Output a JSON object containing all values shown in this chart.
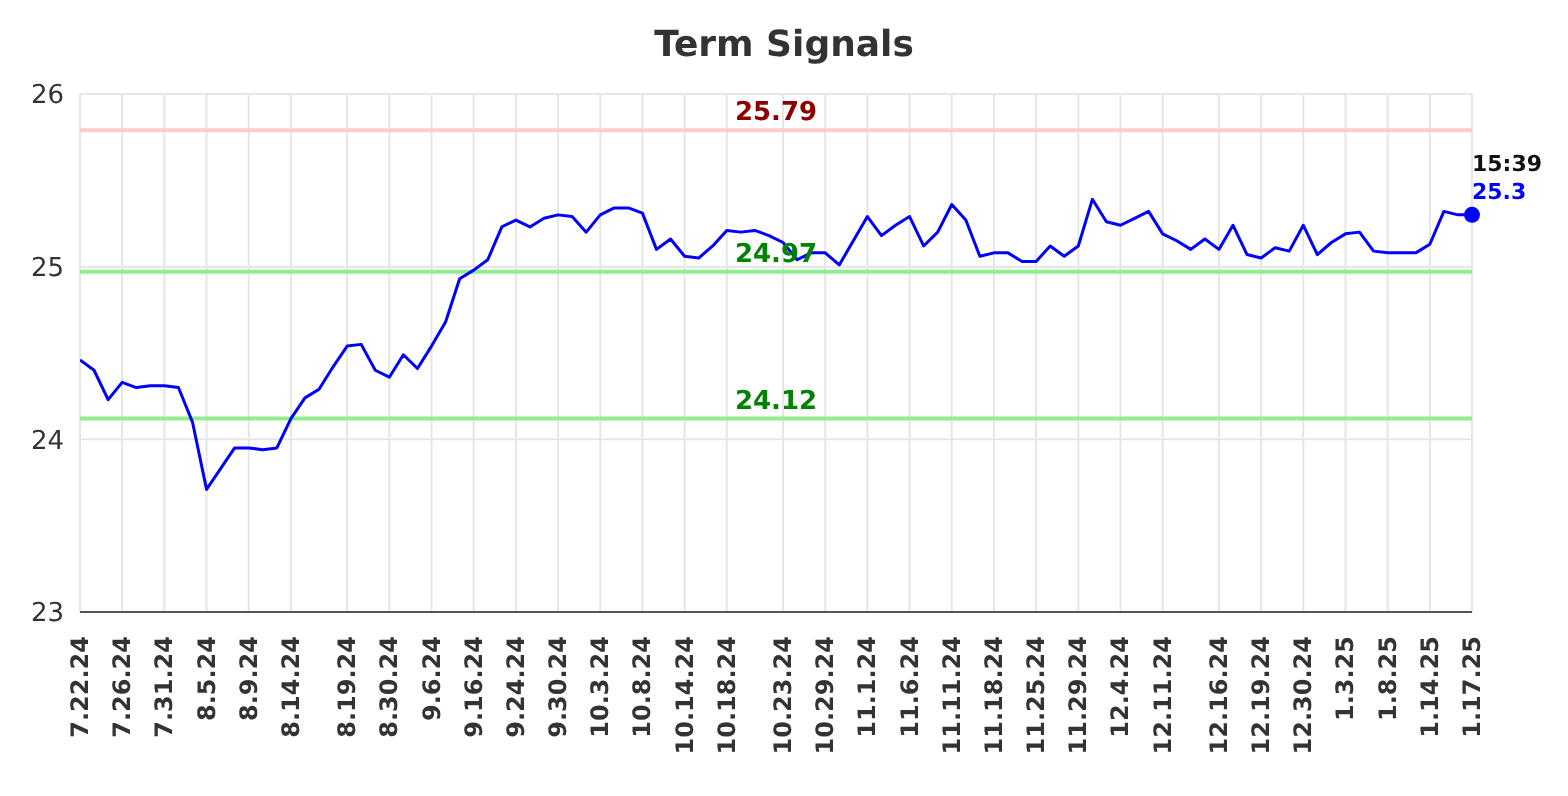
{
  "chart_data": {
    "type": "line",
    "title": "Term Signals",
    "categories": [
      "7.22.24",
      null,
      null,
      "7.26.24",
      null,
      null,
      "7.31.24",
      null,
      null,
      "8.5.24",
      null,
      null,
      "8.9.24",
      null,
      null,
      "8.14.24",
      null,
      null,
      null,
      "8.19.24",
      null,
      null,
      "8.30.24",
      null,
      null,
      "9.6.24",
      null,
      null,
      "9.16.24",
      null,
      null,
      "9.24.24",
      null,
      null,
      "9.30.24",
      null,
      null,
      "10.3.24",
      null,
      null,
      "10.8.24",
      null,
      null,
      "10.14.24",
      null,
      null,
      "10.18.24",
      null,
      null,
      null,
      "10.23.24",
      null,
      null,
      "10.29.24",
      null,
      null,
      "11.1.24",
      null,
      null,
      "11.6.24",
      null,
      null,
      "11.11.24",
      null,
      null,
      "11.18.24",
      null,
      null,
      "11.25.24",
      null,
      null,
      "11.29.24",
      null,
      null,
      "12.4.24",
      null,
      null,
      "12.11.24",
      null,
      null,
      null,
      "12.16.24",
      null,
      null,
      "12.19.24",
      null,
      null,
      "12.30.24",
      null,
      null,
      "1.3.25",
      null,
      null,
      "1.8.25",
      null,
      null,
      "1.14.25",
      null,
      null,
      "1.17.25"
    ],
    "series": [
      {
        "color": "#0000ff",
        "values": [
          24.46,
          24.4,
          24.23,
          24.33,
          24.3,
          24.31,
          24.31,
          24.3,
          24.1,
          23.71,
          23.83,
          23.95,
          23.95,
          23.94,
          23.95,
          24.12,
          24.24,
          24.29,
          24.42,
          24.54,
          24.55,
          24.4,
          24.36,
          24.49,
          24.41,
          24.54,
          24.68,
          24.93,
          24.98,
          25.04,
          25.23,
          25.27,
          25.23,
          25.28,
          25.3,
          25.29,
          25.2,
          25.3,
          25.34,
          25.34,
          25.31,
          25.1,
          25.16,
          25.06,
          25.05,
          25.12,
          25.21,
          25.2,
          25.21,
          25.18,
          25.14,
          25.04,
          25.08,
          25.08,
          25.01,
          25.15,
          25.29,
          25.18,
          25.24,
          25.29,
          25.12,
          25.2,
          25.36,
          25.27,
          25.06,
          25.08,
          25.08,
          25.03,
          25.03,
          25.12,
          25.06,
          25.12,
          25.39,
          25.26,
          25.24,
          25.28,
          25.32,
          25.19,
          25.15,
          25.1,
          25.16,
          25.1,
          25.24,
          25.07,
          25.05,
          25.11,
          25.09,
          25.24,
          25.07,
          25.14,
          25.19,
          25.2,
          25.09,
          25.08,
          25.08,
          25.08,
          25.13,
          25.32,
          25.3,
          25.3
        ],
        "value_labels": [
          null,
          null,
          null,
          null,
          null,
          null,
          null,
          null,
          null,
          null,
          null,
          null,
          null,
          null,
          null,
          null,
          null,
          null,
          null,
          null,
          null,
          null,
          null,
          null,
          null,
          null,
          null,
          null,
          null,
          null,
          null,
          null,
          null,
          null,
          null,
          null,
          null,
          null,
          null,
          null,
          null,
          null,
          null,
          null,
          null,
          null,
          null,
          null,
          null,
          null,
          null,
          null,
          null,
          null,
          null,
          null,
          null,
          null,
          null,
          null,
          null,
          null,
          null,
          null,
          null,
          null,
          null,
          null,
          null,
          null,
          null,
          null,
          null,
          null,
          null,
          null,
          null,
          null,
          null,
          null,
          null,
          null,
          null,
          null,
          null,
          null,
          null,
          null,
          null,
          null,
          null,
          null,
          null,
          null,
          null,
          null,
          null,
          null,
          null,
          "25.3"
        ]
      }
    ],
    "ylim": [
      23,
      26
    ],
    "yticks": [
      23,
      24,
      25,
      26
    ],
    "grid": true,
    "legend": false,
    "marker": "none",
    "line_style": "solid",
    "ref_lines": [
      {
        "axis": "y",
        "value": 25.79,
        "label": "25.79",
        "color": "#ffcccc"
      },
      {
        "axis": "y",
        "value": 24.97,
        "label": "24.97",
        "color": "#90ee90"
      },
      {
        "axis": "y",
        "value": 24.12,
        "label": "24.12",
        "color": "#90ee90"
      }
    ],
    "annotations": [
      {
        "text": "15:39",
        "x": "1.17.25",
        "y": 25.3
      }
    ]
  }
}
